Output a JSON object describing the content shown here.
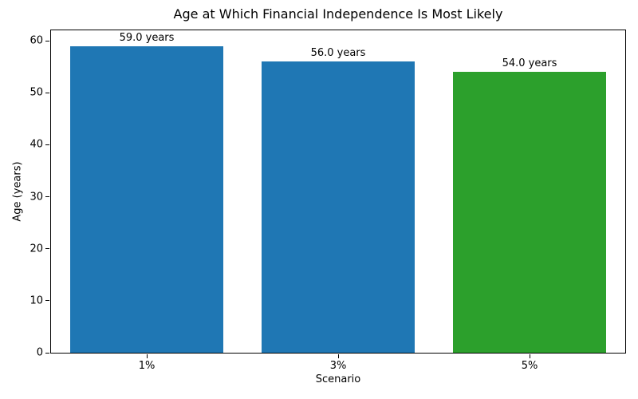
{
  "chart_data": {
    "type": "bar",
    "title": "Age at Which Financial Independence Is Most Likely",
    "xlabel": "Scenario",
    "ylabel": "Age (years)",
    "categories": [
      "1%",
      "3%",
      "5%"
    ],
    "values": [
      59.0,
      56.0,
      54.0
    ],
    "bar_labels": [
      "59.0 years",
      "56.0 years",
      "54.0 years"
    ],
    "bar_colors": [
      "#1f77b4",
      "#1f77b4",
      "#2ca02c"
    ],
    "ylim": [
      0,
      62
    ],
    "yticks": [
      0,
      10,
      20,
      30,
      40,
      50,
      60
    ],
    "grid": false,
    "legend": "none",
    "bar_width_fraction": 0.8,
    "spine_color": "#000000",
    "background_color": "#ffffff"
  }
}
